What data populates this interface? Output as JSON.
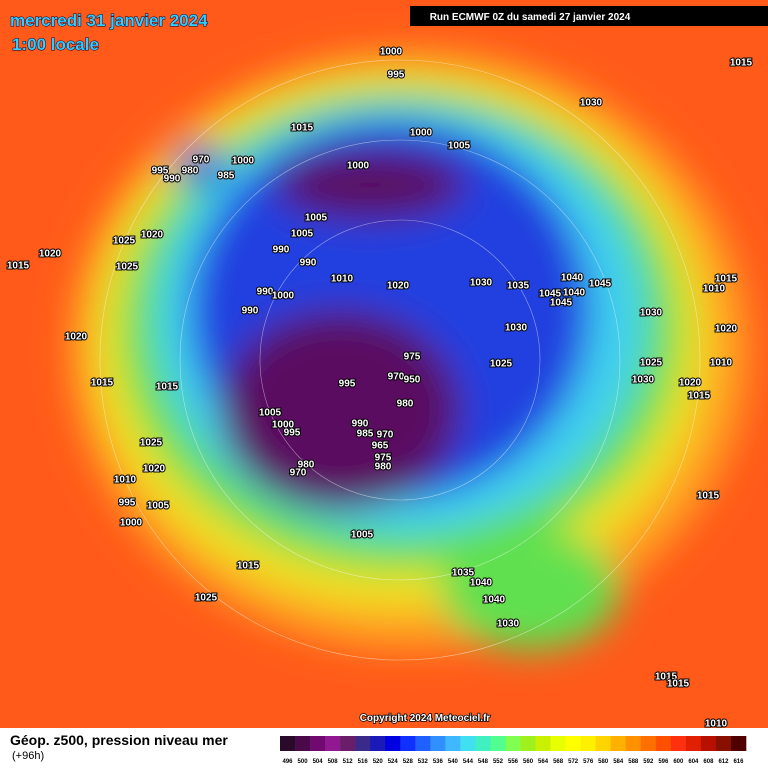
{
  "header": {
    "title": "mercredi 31 janvier 2024",
    "subtitle": "1:00 locale",
    "run": "Run ECMWF 0Z du samedi 27 janvier 2024"
  },
  "isobars": [
    "1000",
    "995",
    "1015",
    "1030",
    "1015",
    "1000",
    "1005",
    "970",
    "1000",
    "995",
    "980",
    "985",
    "990",
    "1000",
    "1005",
    "1005",
    "1025",
    "1020",
    "990",
    "1020",
    "1015",
    "1025",
    "990",
    "1040",
    "1045",
    "1010",
    "1020",
    "1030",
    "1035",
    "1045",
    "1040",
    "1015",
    "1010",
    "990",
    "1000",
    "1045",
    "990",
    "1030",
    "1030",
    "1020",
    "1020",
    "975",
    "1025",
    "1025",
    "1010",
    "970",
    "950",
    "1030",
    "1015",
    "1015",
    "995",
    "1020",
    "1015",
    "980",
    "1005",
    "1000",
    "990",
    "995",
    "970",
    "985",
    "965",
    "1025",
    "975",
    "980",
    "970",
    "980",
    "1020",
    "1010",
    "995",
    "1005",
    "1015",
    "1000",
    "1005",
    "1015",
    "1035",
    "1040",
    "1025",
    "1040",
    "1030",
    "1015",
    "1015",
    "1010"
  ],
  "footer": {
    "copyright": "Copyright 2024 Meteociel.fr",
    "caption": "Géop. z500, pression niveau mer",
    "lead": "(+96h)"
  },
  "legend": {
    "values": [
      496,
      500,
      504,
      508,
      512,
      516,
      520,
      524,
      528,
      532,
      536,
      540,
      544,
      548,
      552,
      556,
      560,
      564,
      568,
      572,
      576,
      580,
      584,
      588,
      592,
      596,
      600,
      604,
      608,
      612,
      616
    ],
    "colors": [
      "#2a0a2a",
      "#4a0a4a",
      "#700a70",
      "#901890",
      "#6a1e6a",
      "#3a2a8a",
      "#1a1ab8",
      "#0000e0",
      "#1030ff",
      "#2060ff",
      "#3090ff",
      "#40b8ff",
      "#40e0f0",
      "#40f0c0",
      "#50ff90",
      "#80ff50",
      "#a0f020",
      "#c8f000",
      "#e8ff00",
      "#ffff00",
      "#fff000",
      "#ffd400",
      "#ffb000",
      "#ff9000",
      "#ff7000",
      "#ff5000",
      "#ff3010",
      "#e02000",
      "#b81000",
      "#881000",
      "#500000"
    ]
  }
}
